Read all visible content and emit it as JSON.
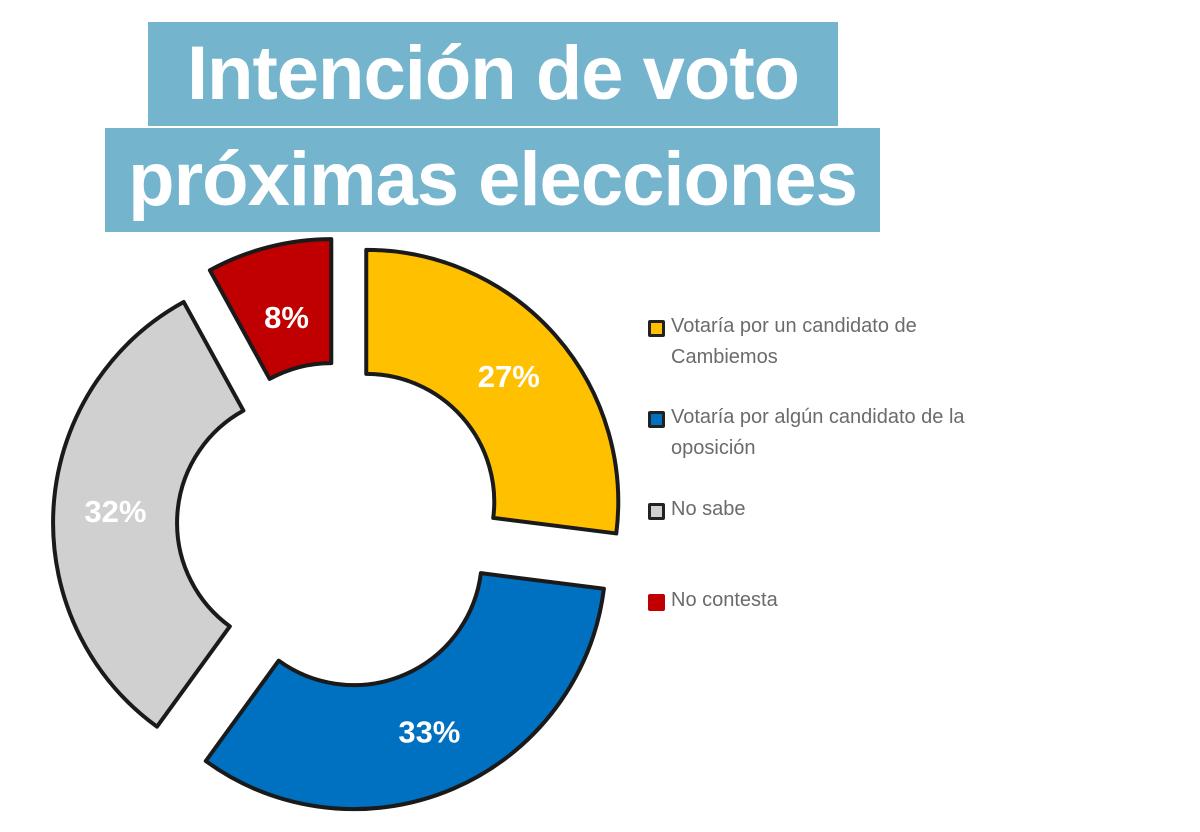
{
  "title": {
    "line1": "Intención de voto",
    "line2": "próximas elecciones"
  },
  "chart_data": {
    "type": "pie",
    "donut": true,
    "title": "Intención de voto próximas elecciones",
    "categories": [
      "Votaría por un candidato de Cambiemos",
      "Votaría por algún candidato de la oposición",
      "No sabe",
      "No contesta"
    ],
    "values": [
      27,
      33,
      32,
      8
    ],
    "data_labels": [
      "27%",
      "33%",
      "32%",
      "8%"
    ],
    "colors": [
      "#ffc000",
      "#0070c0",
      "#d0d0d0",
      "#c00000"
    ],
    "legend_placement": "right",
    "exploded": true
  },
  "legend": [
    {
      "label": "Votaría por un candidato de Cambiemos",
      "color": "#ffc000"
    },
    {
      "label": "Votaría por algún candidato de la oposición",
      "color": "#0070c0"
    },
    {
      "label": "No sabe",
      "color": "#d0d0d0"
    },
    {
      "label": "No contesta",
      "color": "#c00000"
    }
  ]
}
